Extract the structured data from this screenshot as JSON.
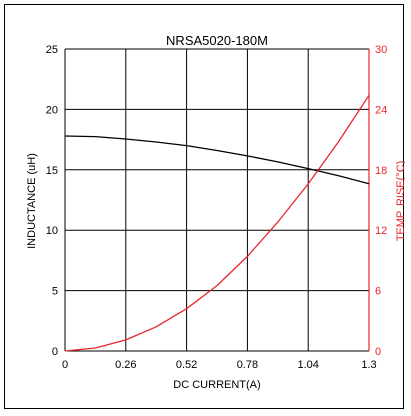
{
  "chart_data": {
    "type": "line",
    "title": "NRSA5020-180M",
    "xlabel": "DC CURRENT(A)",
    "ylabel_left": "INDUCTANCE (uH)",
    "ylabel_right": "TEMP. RISE(°C)",
    "x_ticks": [
      "0",
      "0.26",
      "0.52",
      "0.78",
      "1.04",
      "1.3"
    ],
    "y_left_ticks": [
      "0",
      "5",
      "10",
      "15",
      "20",
      "25"
    ],
    "y_right_ticks": [
      "0",
      "6",
      "12",
      "18",
      "24",
      "30"
    ],
    "xlim": [
      0,
      1.3
    ],
    "ylim_left": [
      0,
      25
    ],
    "ylim_right": [
      0,
      30
    ],
    "grid": true,
    "series": [
      {
        "axis": "left",
        "color": "#000000",
        "x": [
          0,
          0.13,
          0.26,
          0.39,
          0.52,
          0.65,
          0.78,
          0.91,
          1.04,
          1.17,
          1.3
        ],
        "y": [
          17.8,
          17.75,
          17.55,
          17.3,
          17.0,
          16.6,
          16.15,
          15.65,
          15.1,
          14.5,
          13.85
        ]
      },
      {
        "axis": "right",
        "color": "#e8262a",
        "x": [
          0,
          0.13,
          0.26,
          0.39,
          0.52,
          0.65,
          0.78,
          0.91,
          1.04,
          1.17,
          1.3
        ],
        "y": [
          0,
          0.3,
          1.1,
          2.4,
          4.2,
          6.5,
          9.4,
          12.8,
          16.6,
          20.8,
          25.4
        ]
      }
    ],
    "colors": {
      "axis_left": "#000000",
      "axis_right": "#e8262a",
      "grid": "#000000"
    }
  }
}
